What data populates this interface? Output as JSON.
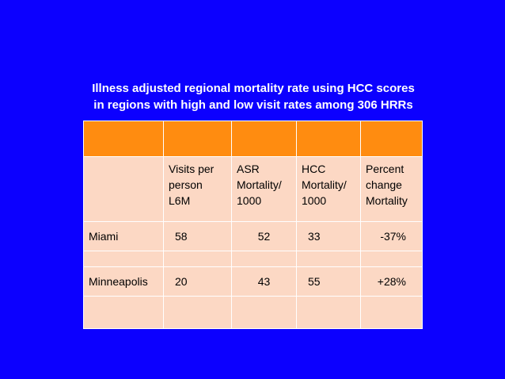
{
  "slide": {
    "title_line1": "Illness adjusted regional mortality rate using HCC scores",
    "title_line2": "in regions with high and low visit rates among 306 HRRs",
    "background_color": "#0c00ff",
    "header_color": "#ff8c10",
    "cell_color": "#fcd8c4"
  },
  "table": {
    "headers": [
      "",
      "Visits per person L6M",
      "ASR Mortality/ 1000",
      "HCC Mortality/ 1000",
      "Percent change Mortality"
    ],
    "rows": [
      {
        "region": "Miami",
        "visits": "58",
        "asr": "52",
        "hcc": "33",
        "pct": "-37%"
      },
      {
        "region": "Minneapolis",
        "visits": "20",
        "asr": "43",
        "hcc": "55",
        "pct": "+28%"
      }
    ]
  }
}
